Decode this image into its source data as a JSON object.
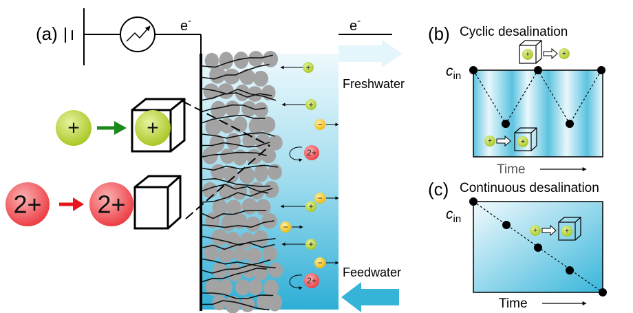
{
  "panels": {
    "a": {
      "label": "(a)",
      "electron_left": "e",
      "electron_right": "e",
      "electron_sup": "-",
      "freshwater": "Freshwater",
      "feedwater": "Feedwater"
    },
    "b": {
      "label": "(b)",
      "title": "Cyclic desalination",
      "cin_main": "c",
      "cin_sub": "in",
      "time": "Time"
    },
    "c": {
      "label": "(c)",
      "title": "Continuous desalination",
      "cin_main": "c",
      "cin_sub": "in",
      "time": "Time"
    }
  },
  "ions": {
    "mono": "+",
    "di": "2+",
    "anion": "−"
  },
  "colors": {
    "mono": "#b5d334",
    "di": "#ef4a4f",
    "anion": "#f4c21b",
    "water_light": "#e8f7fc",
    "water_dark": "#2bb3d8",
    "particle": "#a3a3a3",
    "arrow_green": "#1a8a1a",
    "arrow_red": "#e8141b",
    "arrow_in": "#36b4d8",
    "arrow_out": "#e4f6fc"
  }
}
